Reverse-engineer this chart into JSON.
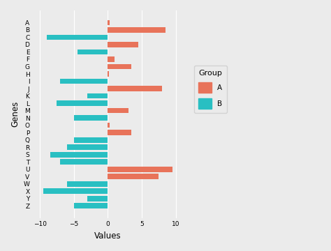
{
  "genes": [
    "A",
    "B",
    "C",
    "D",
    "E",
    "F",
    "G",
    "H",
    "I",
    "J",
    "K",
    "L",
    "M",
    "N",
    "O",
    "P",
    "Q",
    "R",
    "S",
    "T",
    "U",
    "V",
    "W",
    "X",
    "Y",
    "Z"
  ],
  "group_A": [
    0.3,
    8.5,
    0,
    4.5,
    0,
    1.0,
    3.5,
    0.2,
    0,
    8.0,
    0,
    0,
    3.0,
    0,
    0.3,
    3.5,
    0,
    0,
    0,
    0,
    9.5,
    7.5,
    0,
    0,
    0,
    0
  ],
  "group_B": [
    0,
    0,
    -9.0,
    0,
    -4.5,
    0,
    0,
    0,
    -7.0,
    0,
    -3.0,
    -7.5,
    0,
    -5.0,
    0,
    0,
    -5.0,
    -6.0,
    -8.5,
    -7.0,
    0,
    0,
    -6.0,
    -9.5,
    -3.0,
    -5.0
  ],
  "color_A": "#E8735A",
  "color_B": "#29BFC2",
  "background_color": "#EBEBEB",
  "grid_color": "#FFFFFF",
  "xlabel": "Values",
  "ylabel": "Genes",
  "xlim": [
    -11,
    11
  ],
  "xticks": [
    -10,
    -5,
    0,
    5,
    10
  ]
}
